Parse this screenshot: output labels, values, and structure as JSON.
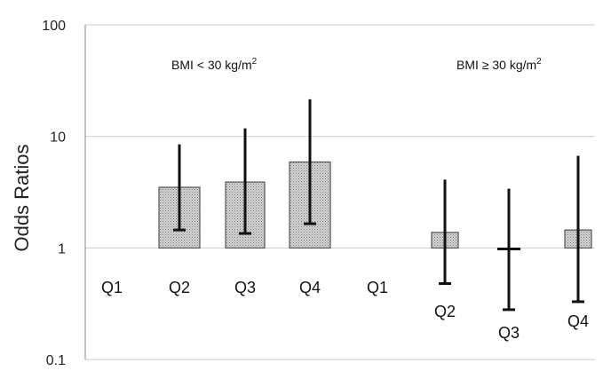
{
  "chart_data": {
    "type": "bar",
    "title": "",
    "ylabel": "Odds Ratios",
    "xlabel": "",
    "yscale": "log",
    "ylim": [
      0.1,
      100
    ],
    "yticks": [
      "0.1",
      "1",
      "10",
      "100"
    ],
    "grid": true,
    "bar_fill": "dotted-gray",
    "groups": [
      {
        "label_main": "BMI < 30 kg/m",
        "label_sup": "2",
        "categories": [
          "Q1",
          "Q2",
          "Q3",
          "Q4"
        ],
        "values": [
          1.0,
          3.5,
          3.9,
          5.9
        ],
        "ci_low": [
          null,
          1.45,
          1.35,
          1.65
        ],
        "ci_high": [
          null,
          8.5,
          11.8,
          21.5
        ]
      },
      {
        "label_main": "BMI ≥ 30 kg/m",
        "label_sup": "2",
        "categories": [
          "Q1",
          "Q2",
          "Q3",
          "Q4"
        ],
        "values": [
          1.0,
          1.38,
          0.98,
          1.45
        ],
        "ci_low": [
          null,
          0.48,
          0.28,
          0.33
        ],
        "ci_high": [
          null,
          4.1,
          3.4,
          6.7
        ]
      }
    ]
  },
  "colors": {
    "bar_fill": "#cfcfcf",
    "bar_dot": "#8a8a8a",
    "bar_stroke": "#555555",
    "grid": "#cccccc",
    "axis": "#888888",
    "whisker": "#111111"
  }
}
